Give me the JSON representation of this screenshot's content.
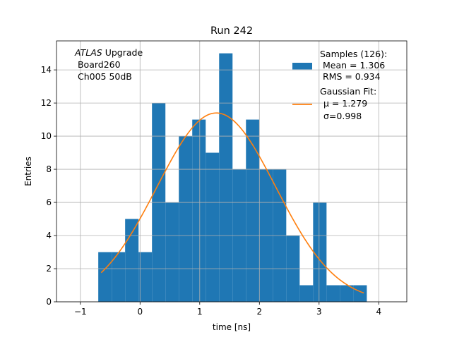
{
  "chart_data": {
    "type": "bar",
    "title": "Run 242",
    "xlabel": "time [ns]",
    "ylabel": "Entries",
    "xlim": [
      -1.4,
      4.47
    ],
    "ylim": [
      0,
      15.75
    ],
    "x_ticks": [
      -1,
      0,
      1,
      2,
      3,
      4
    ],
    "y_ticks": [
      0,
      2,
      4,
      6,
      8,
      10,
      12,
      14
    ],
    "grid": true,
    "annotation": {
      "italic_part": "ATLAS",
      "line1_rest": " Upgrade",
      "line2": " Board260",
      "line3": " Ch005 50dB"
    },
    "histogram": {
      "name": "Samples (126):",
      "color": "#1f77b4",
      "bin_edges": [
        -0.7,
        -0.475,
        -0.25,
        -0.025,
        0.2,
        0.425,
        0.65,
        0.875,
        1.1,
        1.325,
        1.55,
        1.775,
        2.0,
        2.225,
        2.45,
        2.675,
        2.9,
        3.125,
        3.35,
        3.575,
        3.8
      ],
      "counts": [
        3,
        3,
        5,
        3,
        12,
        6,
        10,
        11,
        9,
        15,
        8,
        11,
        8,
        8,
        4,
        1,
        6,
        1,
        1,
        1
      ]
    },
    "fit": {
      "name": "Gaussian Fit:",
      "color": "#ff7f0e",
      "mu": 1.279,
      "sigma": 0.998,
      "amplitude": 11.4,
      "x_range": [
        -0.65,
        3.75
      ]
    },
    "legend": {
      "position": "upper right",
      "samples": [
        "Samples (126):",
        " Mean = 1.306",
        " RMS = 0.934"
      ],
      "fit_title": "Gaussian Fit:",
      "mu_label": "μ = 1.279",
      "sigma_label": "σ=0.998"
    }
  }
}
